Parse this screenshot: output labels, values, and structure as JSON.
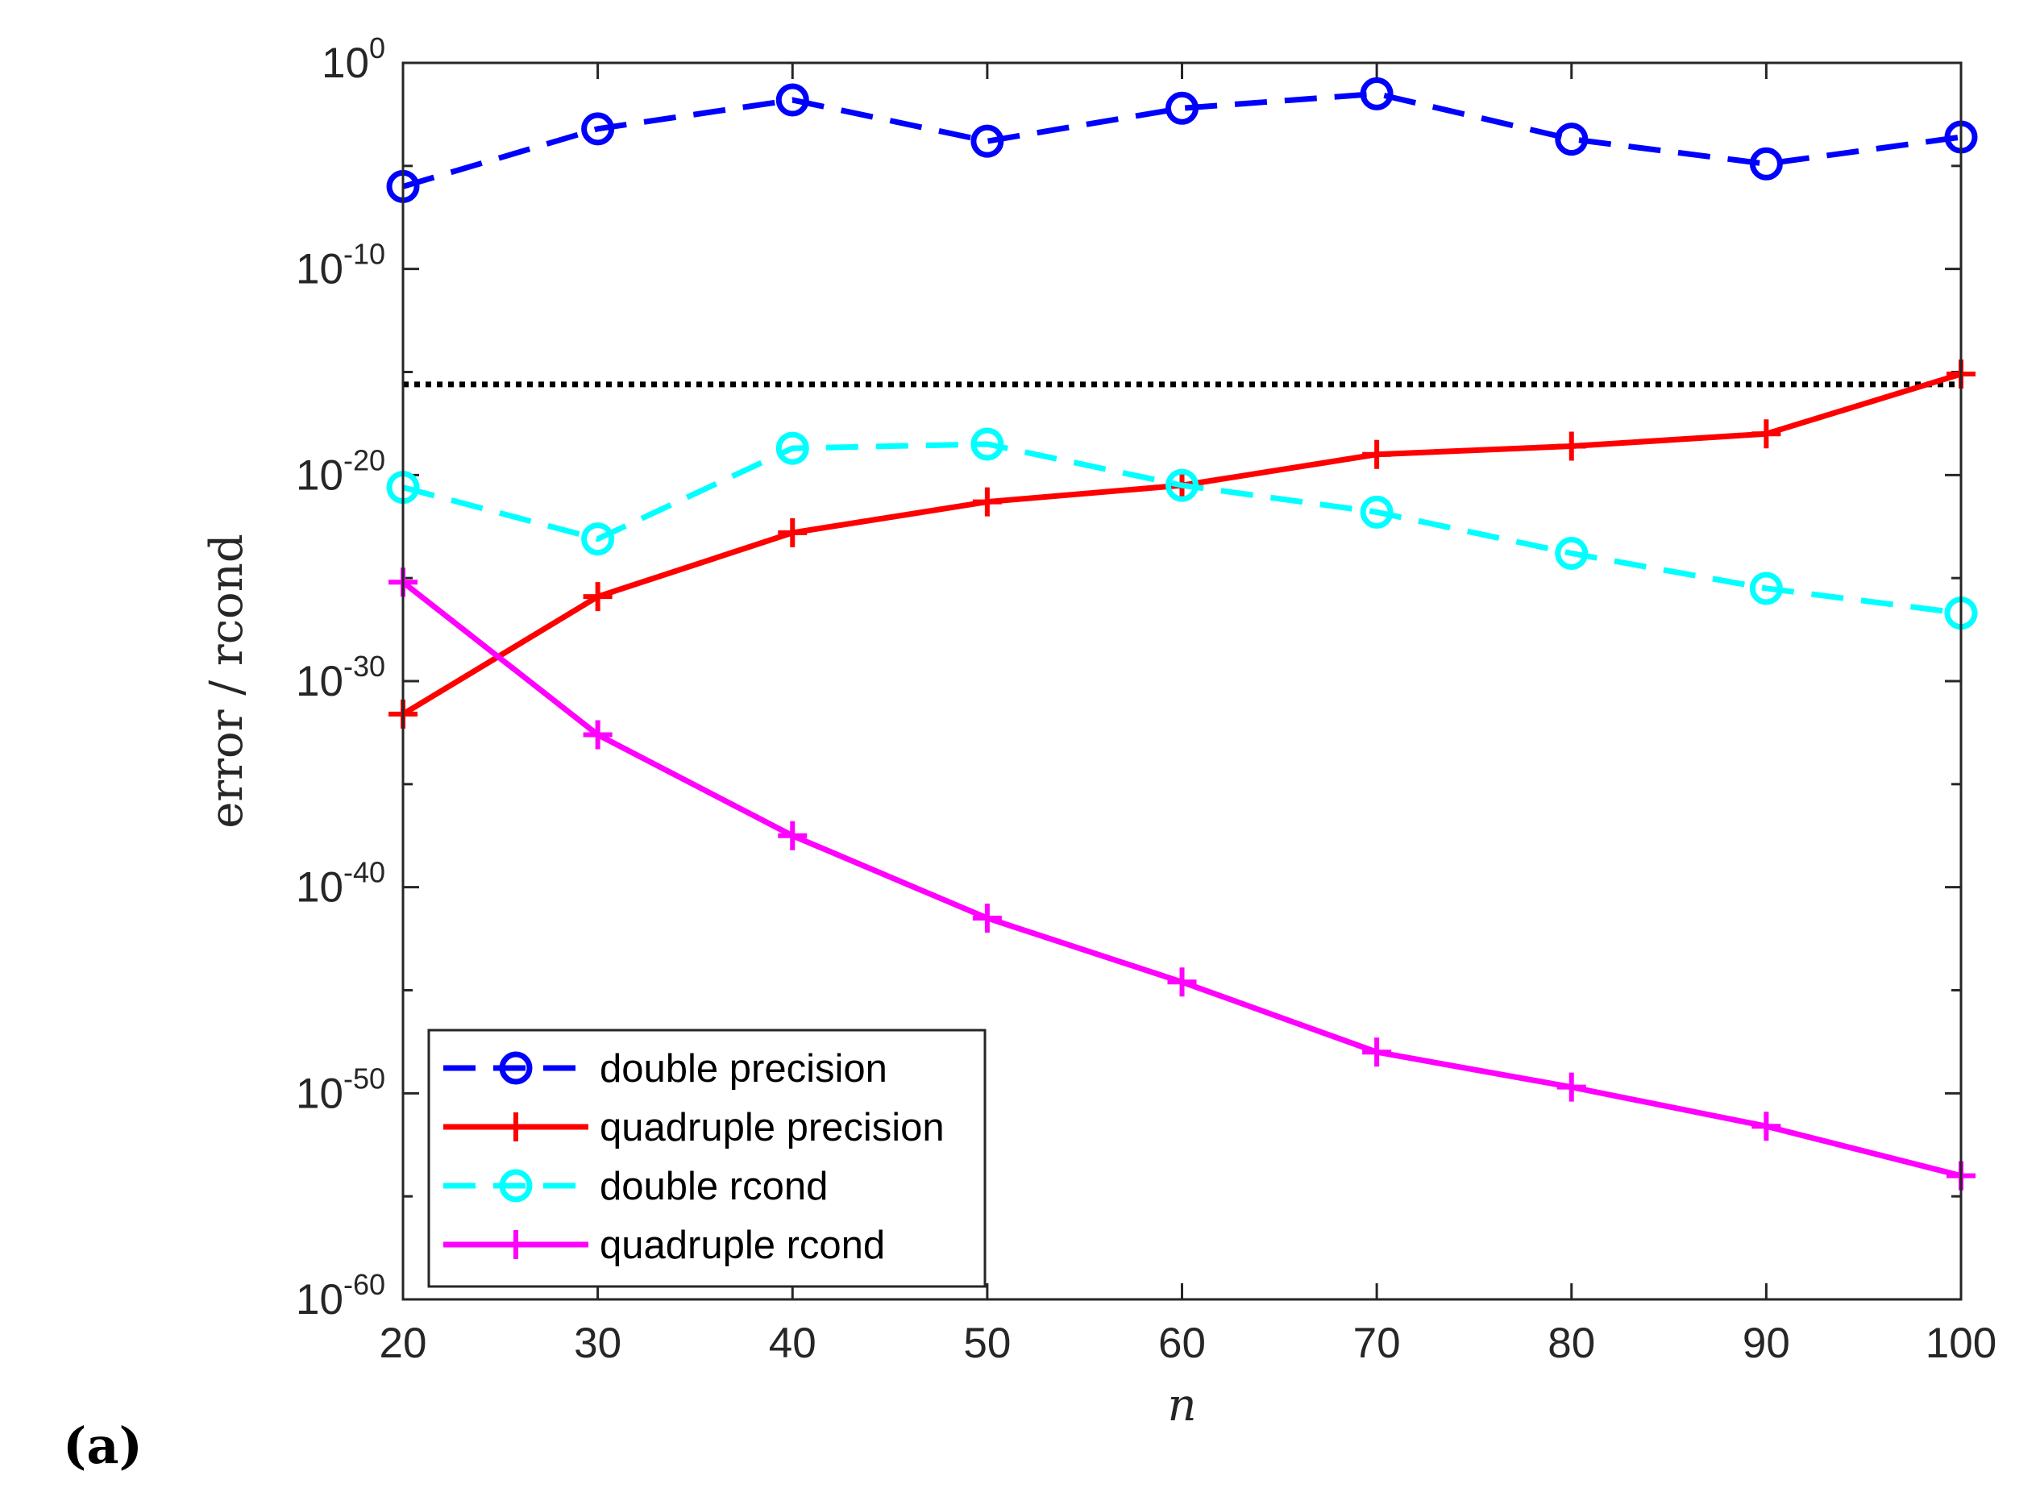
{
  "chart_data": {
    "type": "line",
    "yscale": "log",
    "panel_label": "(a)",
    "xlabel": "n",
    "ylabel": "error / rcond",
    "xlim": [
      20,
      100
    ],
    "ylim_exponent": [
      -60,
      0
    ],
    "x": [
      20,
      30,
      40,
      50,
      60,
      70,
      80,
      90,
      100
    ],
    "x_ticks": [
      20,
      30,
      40,
      50,
      60,
      70,
      80,
      90,
      100
    ],
    "y_ticks": [
      {
        "base": "10",
        "exp": "0",
        "value_exp": 0
      },
      {
        "base": "10",
        "exp": "-10",
        "value_exp": -10
      },
      {
        "base": "10",
        "exp": "-20",
        "value_exp": -20
      },
      {
        "base": "10",
        "exp": "-30",
        "value_exp": -30
      },
      {
        "base": "10",
        "exp": "-40",
        "value_exp": -40
      },
      {
        "base": "10",
        "exp": "-50",
        "value_exp": -50
      },
      {
        "base": "10",
        "exp": "-60",
        "value_exp": -60
      }
    ],
    "reference_line": {
      "value_exp": -15.6,
      "style": "dotted",
      "color": "#000000"
    },
    "series": [
      {
        "name": "double precision",
        "color": "#0000ff",
        "line": "dashed",
        "marker": "circle",
        "values_exp": [
          -6,
          -3.2,
          -1.8,
          -3.8,
          -2.2,
          -1.5,
          -3.7,
          -4.9,
          -3.6
        ]
      },
      {
        "name": "quadruple precision",
        "color": "#ff0000",
        "line": "solid",
        "marker": "plus",
        "values_exp": [
          -31.6,
          -25.9,
          -22.8,
          -21.3,
          -20.5,
          -19.0,
          -18.6,
          -18.0,
          -15.1
        ]
      },
      {
        "name": "double rcond",
        "color": "#00ffff",
        "line": "dashed",
        "marker": "circle",
        "values_exp": [
          -20.6,
          -23.1,
          -18.7,
          -18.5,
          -20.5,
          -21.8,
          -23.8,
          -25.5,
          -26.7
        ]
      },
      {
        "name": "quadruple rcond",
        "color": "#ff00ff",
        "line": "solid",
        "marker": "plus",
        "values_exp": [
          -25.2,
          -32.6,
          -37.5,
          -41.5,
          -44.6,
          -48.0,
          -49.7,
          -51.6,
          -54.0
        ]
      }
    ],
    "legend": {
      "position": "bottom-left"
    }
  }
}
